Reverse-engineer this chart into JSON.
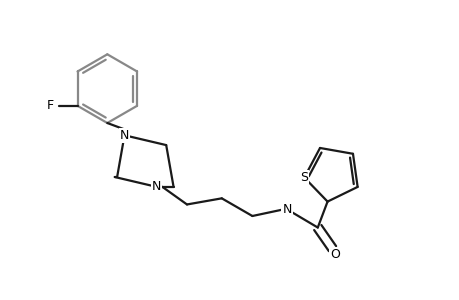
{
  "background_color": "#ffffff",
  "line_color": "#1a1a1a",
  "line_color_gray": "#888888",
  "line_width": 1.6,
  "figsize": [
    4.6,
    3.0
  ],
  "dpi": 100,
  "xlim": [
    0,
    9.2
  ],
  "ylim": [
    0,
    6.0
  ]
}
